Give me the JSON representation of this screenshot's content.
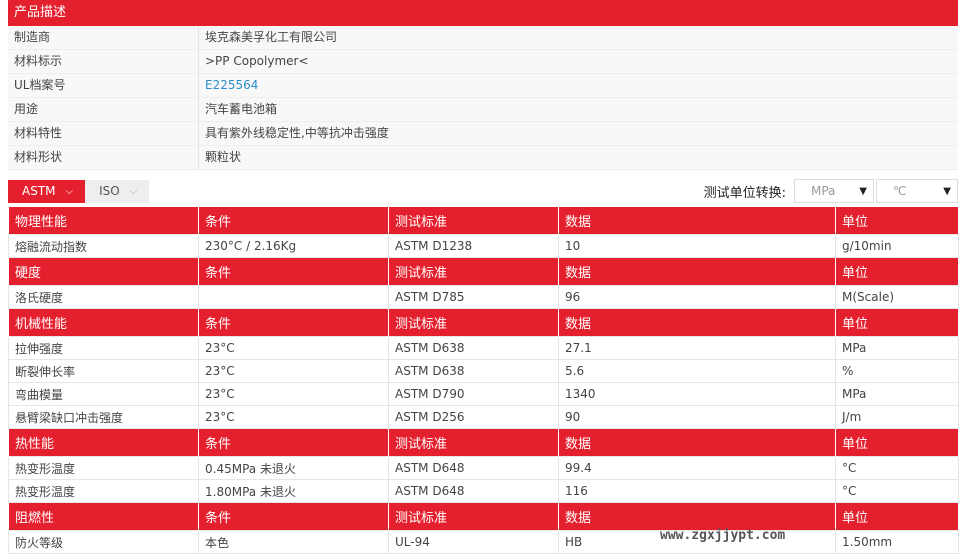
{
  "description": {
    "title": "产品描述",
    "rows": [
      {
        "label": "制造商",
        "value": "埃克森美孚化工有限公司"
      },
      {
        "label": "材料标示",
        "value": ">PP Copolymer<"
      },
      {
        "label": "UL档案号",
        "value": "E225564",
        "link": true
      },
      {
        "label": "用途",
        "value": "汽车蓄电池箱"
      },
      {
        "label": "材料特性",
        "value": "具有紫外线稳定性,中等抗冲击强度"
      },
      {
        "label": "材料形状",
        "value": "颗粒状"
      }
    ]
  },
  "tabs": [
    {
      "label": "ASTM",
      "active": true
    },
    {
      "label": "ISO",
      "active": false
    }
  ],
  "unit_conversion": {
    "label": "测试单位转换:",
    "pressure": "MPa",
    "temperature": "℃"
  },
  "columns": [
    "条件",
    "测试标准",
    "数据",
    "单位"
  ],
  "sections": [
    {
      "title": "物理性能",
      "rows": [
        [
          "熔融流动指数",
          "230°C / 2.16Kg",
          "ASTM D1238",
          "10",
          "g/10min"
        ]
      ]
    },
    {
      "title": "硬度",
      "rows": [
        [
          "洛氏硬度",
          "",
          "ASTM D785",
          "96",
          "M(Scale)"
        ]
      ]
    },
    {
      "title": "机械性能",
      "rows": [
        [
          "拉伸强度",
          "23°C",
          "ASTM D638",
          "27.1",
          "MPa"
        ],
        [
          "断裂伸长率",
          "23°C",
          "ASTM D638",
          "5.6",
          "%"
        ],
        [
          "弯曲模量",
          "23°C",
          "ASTM D790",
          "1340",
          "MPa"
        ],
        [
          "悬臂梁缺口冲击强度",
          "23°C",
          "ASTM D256",
          "90",
          "J/m"
        ]
      ]
    },
    {
      "title": "热性能",
      "rows": [
        [
          "热变形温度",
          "0.45MPa 未退火",
          "ASTM D648",
          "99.4",
          "°C"
        ],
        [
          "热变形温度",
          "1.80MPa 未退火",
          "ASTM D648",
          "116",
          "°C"
        ]
      ]
    },
    {
      "title": "阻燃性",
      "rows": [
        [
          "防火等级",
          "本色",
          "UL-94",
          "HB",
          "1.50mm"
        ]
      ]
    }
  ],
  "watermark": "www.zgxjjypt.com",
  "colors": {
    "accent": "#e5202e",
    "link": "#2a8fd0"
  }
}
